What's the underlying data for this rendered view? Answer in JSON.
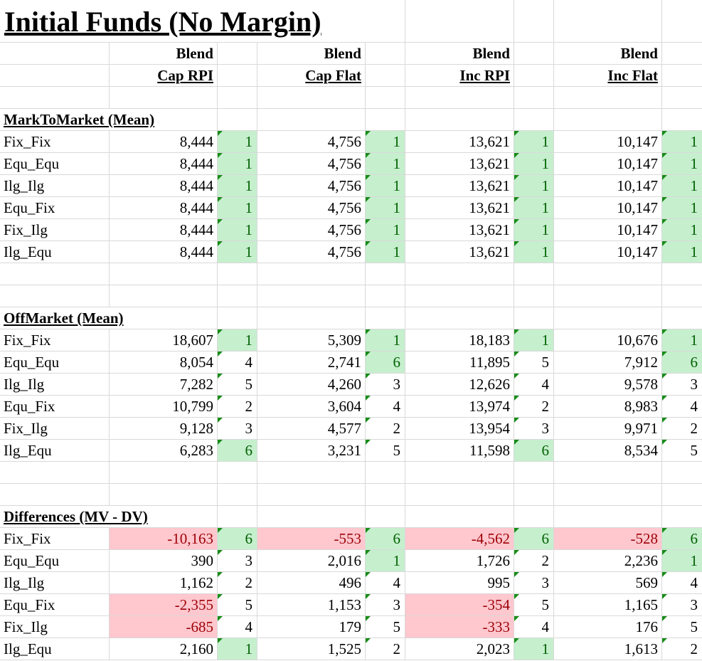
{
  "title": "Initial Funds (No Margin)",
  "header": {
    "line1": [
      "Blend",
      "Blend",
      "Blend",
      "Blend"
    ],
    "line2": [
      "Cap RPI",
      "Cap Flat",
      "Inc RPI",
      "Inc Flat"
    ]
  },
  "colors": {
    "good_fill": "#c6efce",
    "good_text": "#006100",
    "bad_fill": "#ffc7ce",
    "bad_text": "#9c0006",
    "marker": "#178c17"
  },
  "sections": [
    {
      "title": "MarkToMarket (Mean)",
      "rows": [
        {
          "label": "Fix_Fix",
          "values": [
            "8,444",
            "4,756",
            "13,621",
            "10,147"
          ],
          "ranks": [
            "1",
            "1",
            "1",
            "1"
          ],
          "neg": [
            false,
            false,
            false,
            false
          ]
        },
        {
          "label": "Equ_Equ",
          "values": [
            "8,444",
            "4,756",
            "13,621",
            "10,147"
          ],
          "ranks": [
            "1",
            "1",
            "1",
            "1"
          ],
          "neg": [
            false,
            false,
            false,
            false
          ]
        },
        {
          "label": "Ilg_Ilg",
          "values": [
            "8,444",
            "4,756",
            "13,621",
            "10,147"
          ],
          "ranks": [
            "1",
            "1",
            "1",
            "1"
          ],
          "neg": [
            false,
            false,
            false,
            false
          ]
        },
        {
          "label": "Equ_Fix",
          "values": [
            "8,444",
            "4,756",
            "13,621",
            "10,147"
          ],
          "ranks": [
            "1",
            "1",
            "1",
            "1"
          ],
          "neg": [
            false,
            false,
            false,
            false
          ]
        },
        {
          "label": "Fix_Ilg",
          "values": [
            "8,444",
            "4,756",
            "13,621",
            "10,147"
          ],
          "ranks": [
            "1",
            "1",
            "1",
            "1"
          ],
          "neg": [
            false,
            false,
            false,
            false
          ]
        },
        {
          "label": "Ilg_Equ",
          "values": [
            "8,444",
            "4,756",
            "13,621",
            "10,147"
          ],
          "ranks": [
            "1",
            "1",
            "1",
            "1"
          ],
          "neg": [
            false,
            false,
            false,
            false
          ]
        }
      ]
    },
    {
      "title": "OffMarket (Mean)",
      "rows": [
        {
          "label": "Fix_Fix",
          "values": [
            "18,607",
            "5,309",
            "18,183",
            "10,676"
          ],
          "ranks": [
            "1",
            "1",
            "1",
            "1"
          ],
          "neg": [
            false,
            false,
            false,
            false
          ]
        },
        {
          "label": "Equ_Equ",
          "values": [
            "8,054",
            "2,741",
            "11,895",
            "7,912"
          ],
          "ranks": [
            "4",
            "6",
            "5",
            "6"
          ],
          "neg": [
            false,
            false,
            false,
            false
          ]
        },
        {
          "label": "Ilg_Ilg",
          "values": [
            "7,282",
            "4,260",
            "12,626",
            "9,578"
          ],
          "ranks": [
            "5",
            "3",
            "4",
            "3"
          ],
          "neg": [
            false,
            false,
            false,
            false
          ]
        },
        {
          "label": "Equ_Fix",
          "values": [
            "10,799",
            "3,604",
            "13,974",
            "8,983"
          ],
          "ranks": [
            "2",
            "4",
            "2",
            "4"
          ],
          "neg": [
            false,
            false,
            false,
            false
          ]
        },
        {
          "label": "Fix_Ilg",
          "values": [
            "9,128",
            "4,577",
            "13,954",
            "9,971"
          ],
          "ranks": [
            "3",
            "2",
            "3",
            "2"
          ],
          "neg": [
            false,
            false,
            false,
            false
          ]
        },
        {
          "label": "Ilg_Equ",
          "values": [
            "6,283",
            "3,231",
            "11,598",
            "8,534"
          ],
          "ranks": [
            "6",
            "5",
            "6",
            "5"
          ],
          "neg": [
            false,
            false,
            false,
            false
          ]
        }
      ]
    },
    {
      "title": "Differences (MV - DV)",
      "rows": [
        {
          "label": "Fix_Fix",
          "values": [
            "-10,163",
            "-553",
            "-4,562",
            "-528"
          ],
          "ranks": [
            "6",
            "6",
            "6",
            "6"
          ],
          "neg": [
            true,
            true,
            true,
            true
          ]
        },
        {
          "label": "Equ_Equ",
          "values": [
            "390",
            "2,016",
            "1,726",
            "2,236"
          ],
          "ranks": [
            "3",
            "1",
            "2",
            "1"
          ],
          "neg": [
            false,
            false,
            false,
            false
          ]
        },
        {
          "label": "Ilg_Ilg",
          "values": [
            "1,162",
            "496",
            "995",
            "569"
          ],
          "ranks": [
            "2",
            "4",
            "3",
            "4"
          ],
          "neg": [
            false,
            false,
            false,
            false
          ]
        },
        {
          "label": "Equ_Fix",
          "values": [
            "-2,355",
            "1,153",
            "-354",
            "1,165"
          ],
          "ranks": [
            "5",
            "3",
            "5",
            "3"
          ],
          "neg": [
            true,
            false,
            true,
            false
          ]
        },
        {
          "label": "Fix_Ilg",
          "values": [
            "-685",
            "179",
            "-333",
            "176"
          ],
          "ranks": [
            "4",
            "5",
            "4",
            "5"
          ],
          "neg": [
            true,
            false,
            true,
            false
          ]
        },
        {
          "label": "Ilg_Equ",
          "values": [
            "2,160",
            "1,525",
            "2,023",
            "1,613"
          ],
          "ranks": [
            "1",
            "2",
            "1",
            "2"
          ],
          "neg": [
            false,
            false,
            false,
            false
          ]
        }
      ]
    }
  ]
}
